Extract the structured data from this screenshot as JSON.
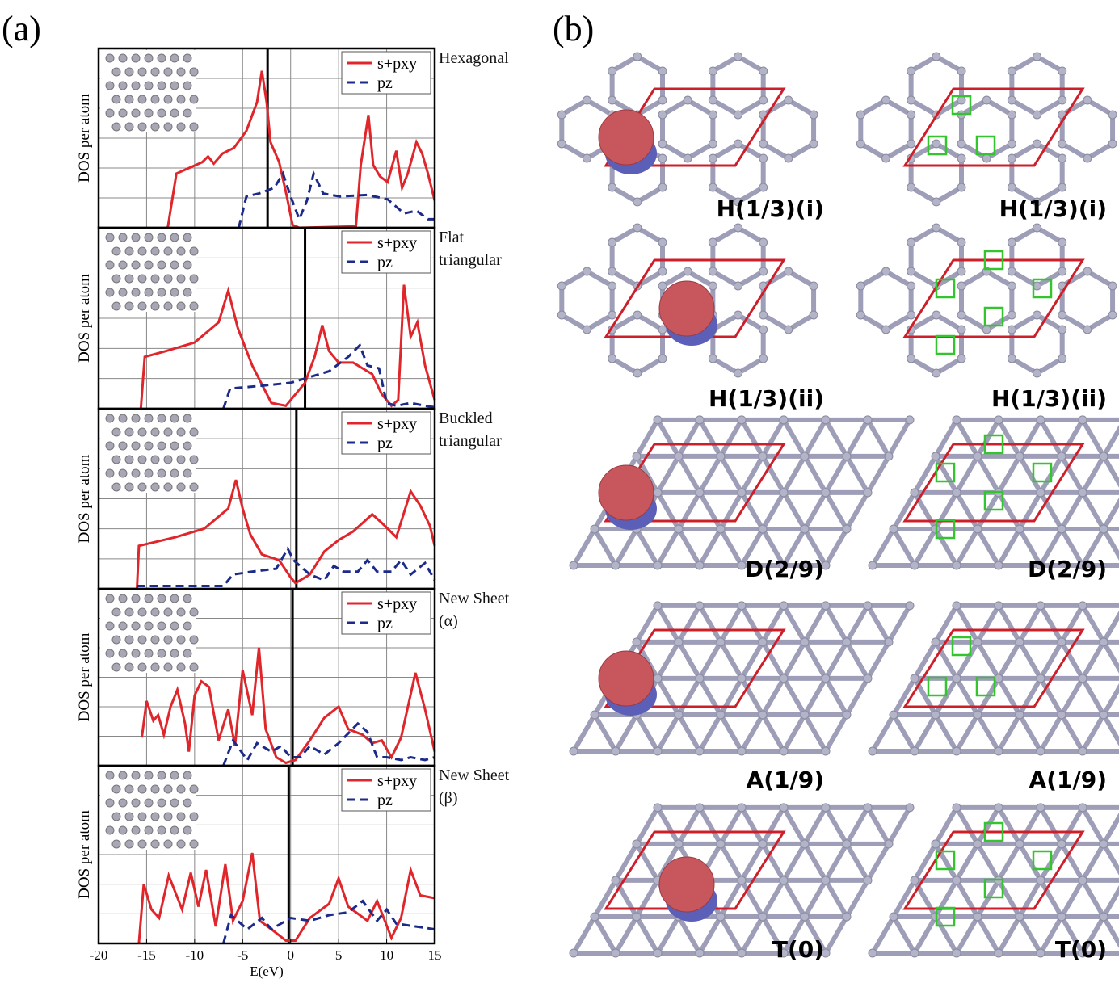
{
  "panel_labels": {
    "a": "(a)",
    "b": "(b)"
  },
  "chart_data": [
    {
      "type": "line",
      "title": "Hexagonal",
      "ylabel": "DOS per atom",
      "xlim": [
        -20,
        15
      ],
      "ylim": [
        0,
        6
      ],
      "grid": true,
      "fermi_level": -2.4,
      "legend": "upper right",
      "series": [
        {
          "name": "s+pxy",
          "color": "#e0262b",
          "dash": false,
          "x": [
            -12.8,
            -11.9,
            -9.2,
            -8.6,
            -8.0,
            -7.1,
            -5.9,
            -4.6,
            -3.5,
            -3.0,
            -2.5,
            -2.1,
            -1.2,
            -0.4,
            0.2,
            0.9,
            6.8,
            7.3,
            8.1,
            8.6,
            9.3,
            10.1,
            11.0,
            11.6,
            12.2,
            13.1,
            13.7,
            14.3,
            15.0
          ],
          "values": [
            0,
            1.9,
            2.3,
            2.5,
            2.25,
            2.6,
            2.8,
            3.4,
            4.4,
            5.5,
            4.4,
            3.0,
            2.3,
            1.1,
            0.1,
            0,
            0.05,
            2.2,
            3.95,
            2.2,
            1.8,
            1.6,
            2.7,
            1.4,
            1.9,
            3.0,
            2.6,
            1.9,
            0.95
          ]
        },
        {
          "name": "pz",
          "color": "#1c2a8a",
          "dash": true,
          "x": [
            -5.4,
            -4.6,
            -3.3,
            -1.7,
            -0.8,
            0.0,
            0.9,
            1.7,
            2.4,
            3.4,
            5.1,
            8.0,
            10.1,
            11.8,
            13.1,
            14.3,
            15.0
          ],
          "values": [
            0,
            1.1,
            1.2,
            1.4,
            1.9,
            1.1,
            0.3,
            0.95,
            1.9,
            1.2,
            1.1,
            1.15,
            1.0,
            0.5,
            0.6,
            0.3,
            0.3
          ]
        }
      ]
    },
    {
      "type": "line",
      "title": "Flat triangular",
      "ylabel": "DOS per atom",
      "xlim": [
        -20,
        15
      ],
      "ylim": [
        0,
        6
      ],
      "grid": true,
      "fermi_level": 1.5,
      "legend": "upper right",
      "series": [
        {
          "name": "s+pxy",
          "color": "#e0262b",
          "dash": false,
          "x": [
            -15.6,
            -15.2,
            -13,
            -10,
            -7.5,
            -6.5,
            -5.5,
            -4,
            -2,
            -0.5,
            1.5,
            2.5,
            3.3,
            4,
            5,
            6.5,
            7.5,
            8.5,
            9.5,
            10.5,
            11.2,
            11.8,
            12.5,
            13.2,
            14,
            15
          ],
          "values": [
            0,
            1.8,
            2.0,
            2.3,
            3.0,
            4.1,
            2.8,
            1.5,
            0.2,
            0.1,
            0.9,
            1.8,
            2.9,
            2.0,
            1.6,
            1.6,
            1.4,
            1.2,
            0.5,
            0.1,
            0.3,
            4.3,
            2.5,
            3.0,
            1.5,
            0.3
          ]
        },
        {
          "name": "pz",
          "color": "#1c2a8a",
          "dash": true,
          "x": [
            -7,
            -6.3,
            -3,
            0,
            2,
            4,
            6,
            7.2,
            8,
            9.2,
            10,
            11,
            12.5,
            14,
            15
          ],
          "values": [
            0,
            0.7,
            0.8,
            0.9,
            1.1,
            1.3,
            1.8,
            2.2,
            1.5,
            1.4,
            0.2,
            0.1,
            0.2,
            0.1,
            0.05
          ]
        }
      ]
    },
    {
      "type": "line",
      "title": "Buckled triangular",
      "ylabel": "DOS per atom",
      "xlim": [
        -20,
        15
      ],
      "ylim": [
        0,
        6
      ],
      "grid": true,
      "fermi_level": 0.6,
      "legend": "upper right",
      "series": [
        {
          "name": "s+pxy",
          "color": "#e0262b",
          "dash": false,
          "x": [
            -16,
            -15.8,
            -12,
            -9,
            -6.5,
            -5.7,
            -5,
            -4.2,
            -3,
            -1.2,
            0,
            0.5,
            2,
            3.5,
            5,
            6.5,
            8.5,
            9.5,
            11,
            12.5,
            13.5,
            14.5,
            15
          ],
          "values": [
            0,
            1.5,
            1.8,
            2.1,
            2.8,
            3.8,
            2.8,
            1.9,
            1.2,
            1.0,
            0.4,
            0.2,
            0.5,
            1.3,
            1.7,
            2.0,
            2.6,
            2.3,
            1.8,
            3.4,
            2.9,
            2.2,
            1.5
          ]
        },
        {
          "name": "pz",
          "color": "#1c2a8a",
          "dash": true,
          "x": [
            -16,
            -10,
            -7,
            -6,
            -4,
            -1.5,
            -0.3,
            0.3,
            2,
            3.5,
            4.5,
            5.5,
            7,
            8,
            9,
            10.5,
            11.5,
            12.5,
            14,
            15
          ],
          "values": [
            0.1,
            0.1,
            0.1,
            0.5,
            0.6,
            0.7,
            1.4,
            1.0,
            0.5,
            0.3,
            0.8,
            0.6,
            0.6,
            1.0,
            0.6,
            0.6,
            1.0,
            0.5,
            0.9,
            0.3
          ]
        }
      ]
    },
    {
      "type": "line",
      "title": "New Sheet (α)",
      "ylabel": "DOS per atom",
      "xlim": [
        -20,
        15
      ],
      "ylim": [
        0,
        6
      ],
      "grid": true,
      "fermi_level": 0.2,
      "legend": "upper right",
      "series": [
        {
          "name": "s+pxy",
          "color": "#e0262b",
          "dash": false,
          "x": [
            -15.5,
            -15,
            -14.3,
            -13.8,
            -13.2,
            -12.5,
            -11.8,
            -11,
            -10.6,
            -10,
            -9.3,
            -8.5,
            -7.5,
            -6.5,
            -5.8,
            -5,
            -4,
            -3.3,
            -2.6,
            -1.5,
            -0.5,
            0.5,
            2,
            3.5,
            5,
            6,
            7.5,
            8.5,
            9.5,
            10.5,
            11.5,
            13,
            14,
            15
          ],
          "values": [
            1.0,
            2.3,
            1.6,
            1.8,
            1.1,
            2.1,
            2.7,
            1.5,
            0.5,
            2.5,
            3.0,
            2.8,
            0.9,
            2.0,
            0.7,
            3.4,
            1.8,
            4.2,
            1.3,
            0.3,
            0.1,
            0.2,
            0.9,
            1.7,
            2.1,
            1.3,
            1.1,
            0.8,
            0.9,
            0.3,
            1.0,
            3.3,
            2.0,
            0.5
          ]
        },
        {
          "name": "pz",
          "color": "#1c2a8a",
          "dash": true,
          "x": [
            -7,
            -6,
            -4.5,
            -3.5,
            -2,
            -1,
            0,
            1,
            2,
            3.5,
            5,
            7,
            8,
            9,
            10,
            11.5,
            12.5,
            14,
            15
          ],
          "values": [
            0,
            0.9,
            0.2,
            0.8,
            0.5,
            0.7,
            0.3,
            0.3,
            0.7,
            0.4,
            0.8,
            1.5,
            1.2,
            0.3,
            0.3,
            0.2,
            0.3,
            0.2,
            0.3
          ]
        }
      ]
    },
    {
      "type": "line",
      "title": "New Sheet (β)",
      "ylabel": "DOS per atom",
      "xlabel": "E(eV)",
      "xlim": [
        -20,
        15
      ],
      "xticks": [
        -20,
        -15,
        -10,
        -5,
        0,
        5,
        10,
        15
      ],
      "ylim": [
        0,
        6
      ],
      "grid": true,
      "fermi_level": -0.2,
      "legend": "upper right",
      "series": [
        {
          "name": "s+pxy",
          "color": "#e0262b",
          "dash": false,
          "x": [
            -15.8,
            -15.3,
            -14.5,
            -13.7,
            -12.7,
            -11.3,
            -10.4,
            -9.6,
            -8.8,
            -7.8,
            -6.8,
            -6,
            -5,
            -4,
            -3.2,
            -2,
            -0.5,
            0.5,
            2,
            4,
            5,
            6,
            8,
            9,
            10.5,
            11.5,
            12.5,
            13.5,
            15
          ],
          "values": [
            0,
            2.1,
            1.2,
            0.9,
            2.4,
            1.2,
            2.5,
            1.3,
            2.6,
            0.6,
            2.8,
            0.8,
            1.5,
            3.2,
            0.8,
            0.5,
            0.1,
            0.1,
            0.9,
            1.4,
            2.3,
            1.3,
            0.8,
            1.5,
            0.2,
            0.9,
            2.6,
            1.7,
            1.6
          ]
        },
        {
          "name": "pz",
          "color": "#1c2a8a",
          "dash": true,
          "x": [
            -7,
            -6.2,
            -4.5,
            -3,
            -2,
            -1,
            0,
            2,
            4,
            6,
            7.5,
            9,
            10,
            11,
            13,
            15
          ],
          "values": [
            0,
            1.0,
            0.5,
            0.9,
            0.5,
            0.7,
            0.9,
            0.8,
            1.0,
            1.1,
            1.5,
            0.8,
            1.2,
            0.7,
            0.6,
            0.5
          ]
        }
      ]
    }
  ],
  "structures": {
    "rows": [
      {
        "left": "H(1/3)(i)",
        "right": "H(1/3)(i)"
      },
      {
        "left": "H(1/3)(ii)",
        "right": "H(1/3)(ii)"
      },
      {
        "left": "D(2/9)",
        "right": "D(2/9)"
      },
      {
        "left": "A(1/9)",
        "right": "A(1/9)"
      },
      {
        "left": "T(0)",
        "right": "T(0)"
      }
    ]
  }
}
